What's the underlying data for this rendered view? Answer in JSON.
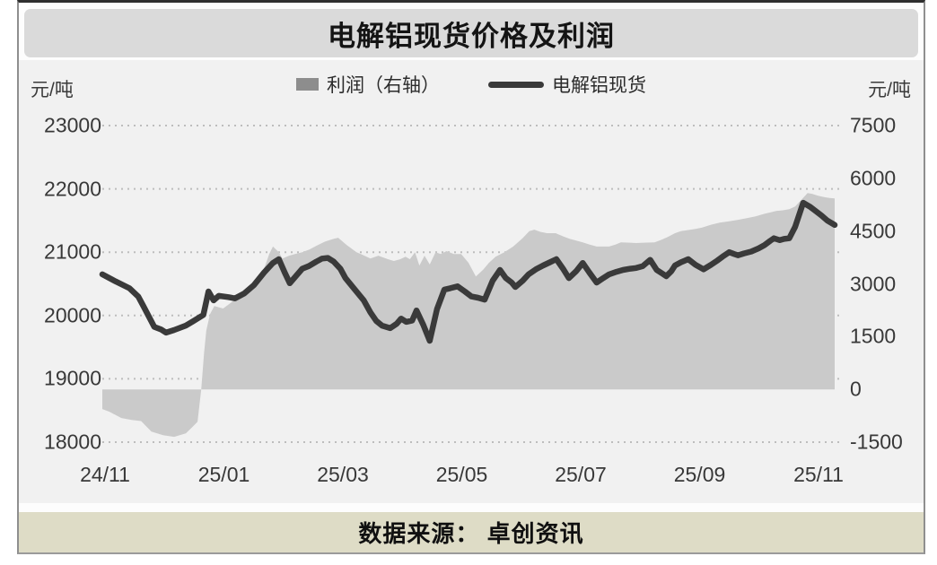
{
  "title": "电解铝现货价格及利润",
  "source": "数据来源： 卓创资讯",
  "axes": {
    "left_unit": "元/吨",
    "right_unit": "元/吨"
  },
  "legend": [
    {
      "label": "利润（右轴）",
      "swatch": "gray-area"
    },
    {
      "label": "电解铝现货",
      "swatch": "dark-line"
    }
  ],
  "colors": {
    "panel_bg": "#f1f1f1",
    "title_bar_bg": "#dadada",
    "area_fill": "#cacaca",
    "line": "#3a3a3a",
    "legend_area_swatch": "#8d8d8d",
    "gridline": "#bdbdbd",
    "source_bar_bg": "#dedcc6",
    "frame_border": "#8f8f8f",
    "frame_top_border": "#2f2f2f"
  },
  "chart_data": {
    "type": "area",
    "subtype": "area + line combo, dual axis",
    "title": "电解铝现货价格及利润",
    "grid": "horizontal dotted lines at left-axis ticks",
    "legend_position": "top center",
    "x_axis": {
      "ticks": [
        "24/11",
        "25/01",
        "25/03",
        "25/05",
        "25/07",
        "25/09",
        "25/11"
      ],
      "note": "x values in series are normalized 0-1 over Nov 2024 to Nov 2025"
    },
    "left_axis": {
      "unit": "元/吨",
      "min": 18000,
      "max": 23000,
      "ticks": [
        23000,
        22000,
        21000,
        20000,
        19000,
        18000
      ]
    },
    "right_axis": {
      "unit": "元/吨",
      "min": -1500,
      "max": 7500,
      "ticks": [
        7500,
        6000,
        4500,
        3000,
        1500,
        0,
        -1500
      ]
    },
    "series": [
      {
        "name": "利润（右轴）",
        "type": "area",
        "axis": "right",
        "baseline": 0,
        "points": [
          [
            0.0,
            -560
          ],
          [
            0.01,
            -640
          ],
          [
            0.026,
            -815
          ],
          [
            0.04,
            -870
          ],
          [
            0.053,
            -900
          ],
          [
            0.067,
            -1200
          ],
          [
            0.083,
            -1300
          ],
          [
            0.098,
            -1350
          ],
          [
            0.114,
            -1250
          ],
          [
            0.123,
            -1070
          ],
          [
            0.13,
            -920
          ],
          [
            0.135,
            0
          ],
          [
            0.139,
            1045
          ],
          [
            0.142,
            1680
          ],
          [
            0.147,
            2140
          ],
          [
            0.153,
            2370
          ],
          [
            0.165,
            2300
          ],
          [
            0.178,
            2500
          ],
          [
            0.19,
            2700
          ],
          [
            0.202,
            2910
          ],
          [
            0.214,
            3150
          ],
          [
            0.222,
            3500
          ],
          [
            0.228,
            3850
          ],
          [
            0.233,
            4060
          ],
          [
            0.241,
            3900
          ],
          [
            0.246,
            3720
          ],
          [
            0.255,
            3800
          ],
          [
            0.263,
            3850
          ],
          [
            0.273,
            3900
          ],
          [
            0.283,
            3980
          ],
          [
            0.294,
            4100
          ],
          [
            0.304,
            4200
          ],
          [
            0.316,
            4280
          ],
          [
            0.322,
            4310
          ],
          [
            0.334,
            4100
          ],
          [
            0.347,
            3900
          ],
          [
            0.353,
            3850
          ],
          [
            0.366,
            3720
          ],
          [
            0.377,
            3800
          ],
          [
            0.39,
            3700
          ],
          [
            0.398,
            3650
          ],
          [
            0.407,
            3700
          ],
          [
            0.414,
            3770
          ],
          [
            0.42,
            3700
          ],
          [
            0.427,
            3900
          ],
          [
            0.433,
            3520
          ],
          [
            0.44,
            3800
          ],
          [
            0.447,
            3550
          ],
          [
            0.455,
            3900
          ],
          [
            0.462,
            3850
          ],
          [
            0.47,
            3930
          ],
          [
            0.48,
            3850
          ],
          [
            0.49,
            3850
          ],
          [
            0.5,
            3600
          ],
          [
            0.51,
            3210
          ],
          [
            0.52,
            3400
          ],
          [
            0.528,
            3600
          ],
          [
            0.537,
            3770
          ],
          [
            0.549,
            3900
          ],
          [
            0.561,
            4060
          ],
          [
            0.574,
            4300
          ],
          [
            0.583,
            4500
          ],
          [
            0.59,
            4540
          ],
          [
            0.598,
            4480
          ],
          [
            0.607,
            4440
          ],
          [
            0.619,
            4440
          ],
          [
            0.629,
            4350
          ],
          [
            0.638,
            4280
          ],
          [
            0.647,
            4230
          ],
          [
            0.656,
            4180
          ],
          [
            0.665,
            4120
          ],
          [
            0.675,
            4060
          ],
          [
            0.684,
            4060
          ],
          [
            0.692,
            4060
          ],
          [
            0.701,
            4120
          ],
          [
            0.708,
            4180
          ],
          [
            0.721,
            4170
          ],
          [
            0.729,
            4160
          ],
          [
            0.739,
            4170
          ],
          [
            0.754,
            4180
          ],
          [
            0.763,
            4250
          ],
          [
            0.772,
            4330
          ],
          [
            0.782,
            4440
          ],
          [
            0.79,
            4500
          ],
          [
            0.8,
            4530
          ],
          [
            0.81,
            4560
          ],
          [
            0.819,
            4600
          ],
          [
            0.831,
            4680
          ],
          [
            0.843,
            4740
          ],
          [
            0.856,
            4780
          ],
          [
            0.868,
            4820
          ],
          [
            0.88,
            4870
          ],
          [
            0.892,
            4920
          ],
          [
            0.904,
            4990
          ],
          [
            0.912,
            5030
          ],
          [
            0.92,
            5070
          ],
          [
            0.929,
            5090
          ],
          [
            0.938,
            5120
          ],
          [
            0.946,
            5200
          ],
          [
            0.955,
            5400
          ],
          [
            0.963,
            5580
          ],
          [
            0.969,
            5560
          ],
          [
            0.978,
            5500
          ],
          [
            0.987,
            5460
          ],
          [
            0.993,
            5440
          ],
          [
            1.0,
            5430
          ]
        ]
      },
      {
        "name": "电解铝现货",
        "type": "line",
        "axis": "left",
        "points": [
          [
            0.0,
            20650
          ],
          [
            0.018,
            20540
          ],
          [
            0.037,
            20430
          ],
          [
            0.049,
            20300
          ],
          [
            0.056,
            20150
          ],
          [
            0.071,
            19820
          ],
          [
            0.08,
            19780
          ],
          [
            0.087,
            19730
          ],
          [
            0.098,
            19770
          ],
          [
            0.114,
            19840
          ],
          [
            0.124,
            19910
          ],
          [
            0.138,
            20010
          ],
          [
            0.145,
            20380
          ],
          [
            0.152,
            20240
          ],
          [
            0.159,
            20310
          ],
          [
            0.172,
            20290
          ],
          [
            0.181,
            20270
          ],
          [
            0.194,
            20350
          ],
          [
            0.207,
            20480
          ],
          [
            0.221,
            20680
          ],
          [
            0.233,
            20830
          ],
          [
            0.241,
            20890
          ],
          [
            0.249,
            20680
          ],
          [
            0.256,
            20510
          ],
          [
            0.265,
            20630
          ],
          [
            0.273,
            20740
          ],
          [
            0.282,
            20780
          ],
          [
            0.292,
            20850
          ],
          [
            0.3,
            20900
          ],
          [
            0.308,
            20910
          ],
          [
            0.316,
            20850
          ],
          [
            0.325,
            20740
          ],
          [
            0.332,
            20590
          ],
          [
            0.344,
            20420
          ],
          [
            0.357,
            20240
          ],
          [
            0.366,
            20050
          ],
          [
            0.374,
            19915
          ],
          [
            0.382,
            19840
          ],
          [
            0.393,
            19800
          ],
          [
            0.402,
            19870
          ],
          [
            0.408,
            19950
          ],
          [
            0.415,
            19900
          ],
          [
            0.423,
            19920
          ],
          [
            0.429,
            20080
          ],
          [
            0.438,
            19860
          ],
          [
            0.447,
            19600
          ],
          [
            0.457,
            20100
          ],
          [
            0.467,
            20410
          ],
          [
            0.475,
            20430
          ],
          [
            0.485,
            20460
          ],
          [
            0.495,
            20380
          ],
          [
            0.504,
            20300
          ],
          [
            0.513,
            20280
          ],
          [
            0.522,
            20250
          ],
          [
            0.533,
            20550
          ],
          [
            0.543,
            20720
          ],
          [
            0.551,
            20590
          ],
          [
            0.559,
            20520
          ],
          [
            0.564,
            20450
          ],
          [
            0.574,
            20550
          ],
          [
            0.582,
            20650
          ],
          [
            0.592,
            20730
          ],
          [
            0.602,
            20790
          ],
          [
            0.611,
            20840
          ],
          [
            0.62,
            20890
          ],
          [
            0.629,
            20740
          ],
          [
            0.637,
            20590
          ],
          [
            0.647,
            20700
          ],
          [
            0.656,
            20830
          ],
          [
            0.665,
            20680
          ],
          [
            0.675,
            20520
          ],
          [
            0.684,
            20590
          ],
          [
            0.692,
            20650
          ],
          [
            0.702,
            20690
          ],
          [
            0.711,
            20720
          ],
          [
            0.721,
            20740
          ],
          [
            0.729,
            20750
          ],
          [
            0.738,
            20780
          ],
          [
            0.748,
            20880
          ],
          [
            0.757,
            20720
          ],
          [
            0.765,
            20660
          ],
          [
            0.77,
            20620
          ],
          [
            0.777,
            20700
          ],
          [
            0.782,
            20790
          ],
          [
            0.79,
            20840
          ],
          [
            0.8,
            20890
          ],
          [
            0.81,
            20800
          ],
          [
            0.821,
            20730
          ],
          [
            0.831,
            20800
          ],
          [
            0.84,
            20870
          ],
          [
            0.847,
            20930
          ],
          [
            0.856,
            21000
          ],
          [
            0.863,
            20970
          ],
          [
            0.868,
            20950
          ],
          [
            0.876,
            20980
          ],
          [
            0.886,
            21010
          ],
          [
            0.896,
            21060
          ],
          [
            0.904,
            21110
          ],
          [
            0.912,
            21180
          ],
          [
            0.917,
            21220
          ],
          [
            0.925,
            21190
          ],
          [
            0.931,
            21210
          ],
          [
            0.938,
            21220
          ],
          [
            0.946,
            21400
          ],
          [
            0.957,
            21780
          ],
          [
            0.966,
            21720
          ],
          [
            0.974,
            21650
          ],
          [
            0.982,
            21580
          ],
          [
            0.99,
            21500
          ],
          [
            1.0,
            21430
          ]
        ]
      }
    ]
  }
}
